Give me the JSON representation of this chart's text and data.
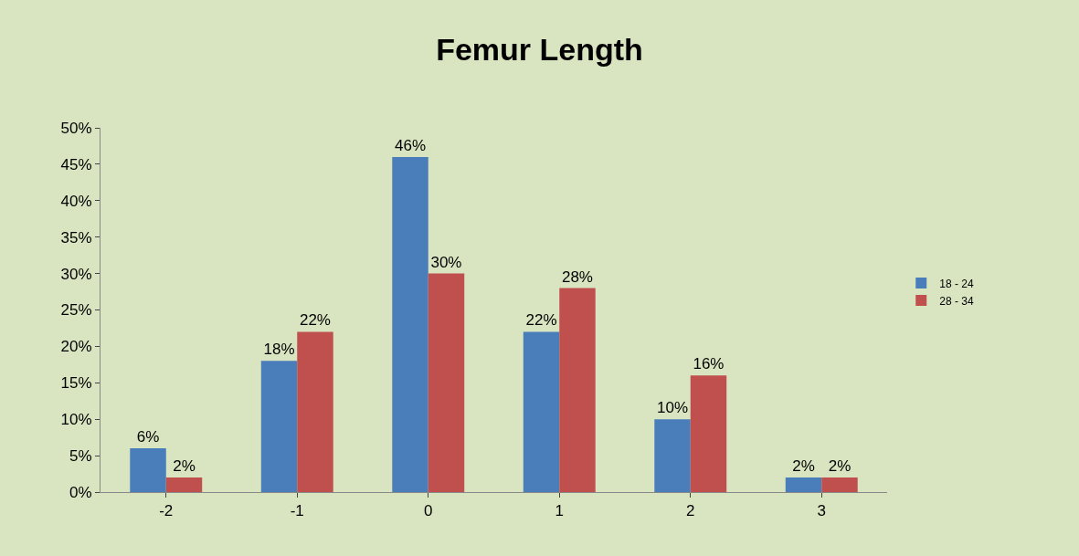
{
  "chart_data": {
    "type": "bar",
    "title": "Femur Length",
    "categories": [
      "-2",
      "-1",
      "0",
      "1",
      "2",
      "3"
    ],
    "series": [
      {
        "name": "18 - 24",
        "color": "#4a7ebb",
        "values": [
          6,
          18,
          46,
          22,
          10,
          2
        ],
        "value_labels": [
          "6%",
          "18%",
          "46%",
          "22%",
          "10%",
          "2%"
        ]
      },
      {
        "name": "28 - 34",
        "color": "#c0504d",
        "values": [
          2,
          22,
          30,
          28,
          16,
          2
        ],
        "value_labels": [
          "2%",
          "22%",
          "30%",
          "28%",
          "16%",
          "2%"
        ]
      }
    ],
    "ylim": [
      0,
      50
    ],
    "yticks": [
      {
        "value": 0,
        "label": "0%"
      },
      {
        "value": 5,
        "label": "5%"
      },
      {
        "value": 10,
        "label": "10%"
      },
      {
        "value": 15,
        "label": "15%"
      },
      {
        "value": 20,
        "label": "20%"
      },
      {
        "value": 25,
        "label": "25%"
      },
      {
        "value": 30,
        "label": "30%"
      },
      {
        "value": 35,
        "label": "35%"
      },
      {
        "value": 40,
        "label": "40%"
      },
      {
        "value": 45,
        "label": "45%"
      },
      {
        "value": 50,
        "label": "50%"
      }
    ],
    "grid": false,
    "legend": "right"
  }
}
